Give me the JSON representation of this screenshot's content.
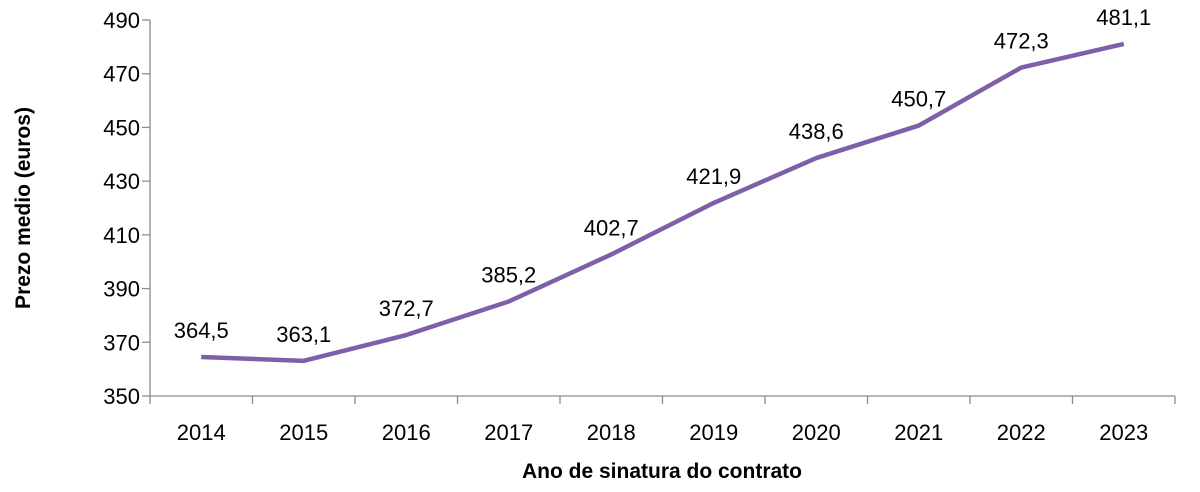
{
  "chart_data": {
    "type": "line",
    "title": "",
    "xlabel": "Ano de sinatura do contrato",
    "ylabel": "Prezo medio (euros)",
    "categories": [
      "2014",
      "2015",
      "2016",
      "2017",
      "2018",
      "2019",
      "2020",
      "2021",
      "2022",
      "2023"
    ],
    "series": [
      {
        "name": "Prezo medio",
        "color": "#7f60a8",
        "values": [
          364.5,
          363.1,
          372.7,
          385.2,
          402.7,
          421.9,
          438.6,
          450.7,
          472.3,
          481.1
        ],
        "labels": [
          "364,5",
          "363,1",
          "372,7",
          "385,2",
          "402,7",
          "421,9",
          "438,6",
          "450,7",
          "472,3",
          "481,1"
        ]
      }
    ],
    "ylim": [
      350,
      490
    ],
    "yticks": [
      350,
      370,
      390,
      410,
      430,
      450,
      470,
      490
    ],
    "grid": false,
    "legend": "none"
  }
}
